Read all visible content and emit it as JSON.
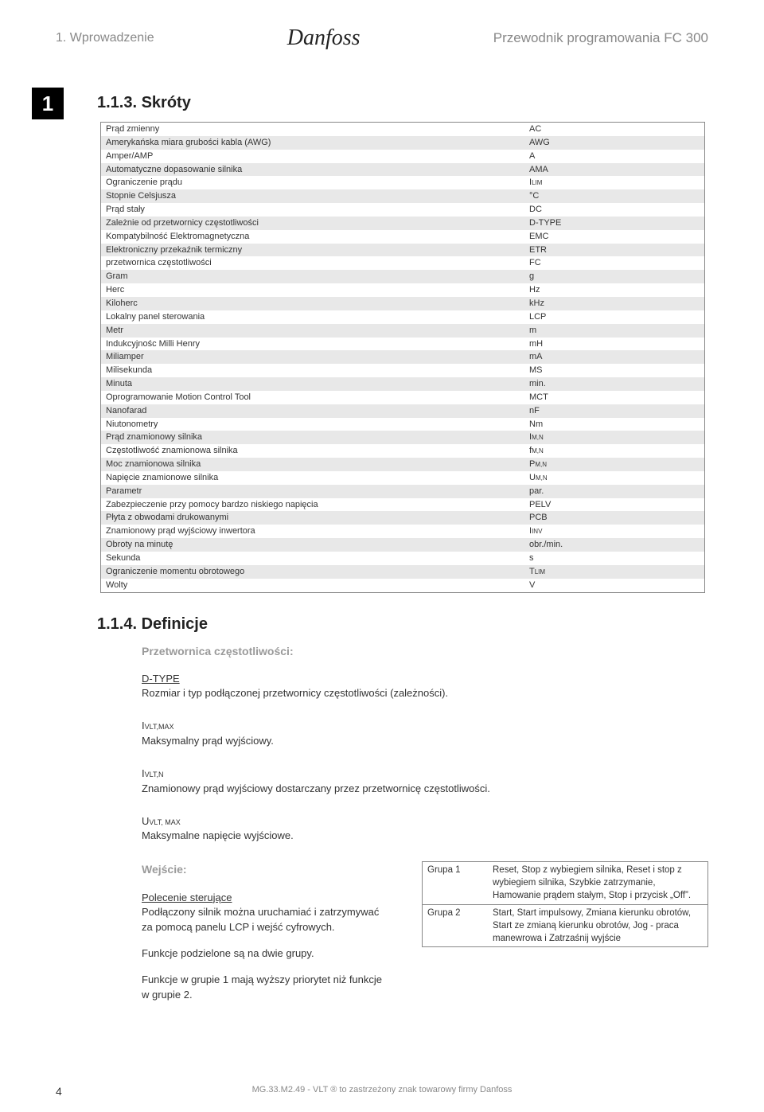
{
  "header": {
    "left": "1. Wprowadzenie",
    "logo": "Danfoss",
    "right": "Przewodnik programowania FC 300"
  },
  "chapter_num": "1",
  "section_abbrev": {
    "title": "1.1.3. Skróty",
    "rows": [
      {
        "label": "Prąd zmienny",
        "value": "AC"
      },
      {
        "label": "Amerykańska miara grubości kabla (AWG)",
        "value": "AWG"
      },
      {
        "label": "Amper/AMP",
        "value": "A"
      },
      {
        "label": "Automatyczne dopasowanie silnika",
        "value": "AMA"
      },
      {
        "label": "Ograniczenie prądu",
        "value": "ILIM",
        "sub": "LIM"
      },
      {
        "label": "Stopnie Celsjusza",
        "value": "°C"
      },
      {
        "label": "Prąd stały",
        "value": "DC"
      },
      {
        "label": "Zależnie od przetwornicy częstotliwości",
        "value": "D-TYPE"
      },
      {
        "label": "Kompatybilność Elektromagnetyczna",
        "value": "EMC"
      },
      {
        "label": "Elektroniczny przekaźnik termiczny",
        "value": "ETR"
      },
      {
        "label": "przetwornica częstotliwości",
        "value": "FC"
      },
      {
        "label": "Gram",
        "value": "g"
      },
      {
        "label": "Herc",
        "value": "Hz"
      },
      {
        "label": "Kiloherc",
        "value": "kHz"
      },
      {
        "label": "Lokalny panel sterowania",
        "value": "LCP"
      },
      {
        "label": "Metr",
        "value": "m"
      },
      {
        "label": "Indukcyjnośc Milli Henry",
        "value": "mH"
      },
      {
        "label": "Miliamper",
        "value": "mA"
      },
      {
        "label": "Milisekunda",
        "value": "MS"
      },
      {
        "label": "Minuta",
        "value": "min."
      },
      {
        "label": "Oprogramowanie Motion Control Tool",
        "value": "MCT"
      },
      {
        "label": "Nanofarad",
        "value": "nF"
      },
      {
        "label": "Niutonometry",
        "value": "Nm"
      },
      {
        "label": "Prąd znamionowy silnika",
        "value": "IM,N",
        "sub": "M,N"
      },
      {
        "label": "Częstotliwość znamionowa silnika",
        "value": "fM,N",
        "sub": "M,N",
        "pre": "f"
      },
      {
        "label": "Moc znamionowa silnika",
        "value": "PM,N",
        "sub": "M,N",
        "pre": "P"
      },
      {
        "label": "Napięcie znamionowe silnika",
        "value": "UM,N",
        "sub": "M,N",
        "pre": "U"
      },
      {
        "label": "Parametr",
        "value": "par."
      },
      {
        "label": "Zabezpieczenie przy pomocy bardzo niskiego napięcia",
        "value": "PELV"
      },
      {
        "label": "Płyta z obwodami drukowanymi",
        "value": "PCB"
      },
      {
        "label": "Znamionowy prąd wyjściowy inwertora",
        "value": "IINV",
        "sub": "INV"
      },
      {
        "label": "Obroty na minutę",
        "value": "obr./min."
      },
      {
        "label": "Sekunda",
        "value": "s"
      },
      {
        "label": "Ograniczenie momentu obrotowego",
        "value": "TLIM",
        "sub": "LIM",
        "pre": "T"
      },
      {
        "label": "Wolty",
        "value": "V"
      }
    ],
    "row_bg_shade": "#e8e8e8",
    "row_bg_plain": "#ffffff"
  },
  "section_defs": {
    "title": "1.1.4. Definicje",
    "subheading": "Przetwornica częstotliwości:",
    "defs": [
      {
        "term_html": "D-TYPE",
        "desc": "Rozmiar i typ podłączonej przetwornicy częstotliwości (zależności).",
        "underline": true
      },
      {
        "term_html": "I<span class='sub2'>VLT,MAX</span>",
        "desc": "Maksymalny prąd wyjściowy."
      },
      {
        "term_html": "I<span class='sub2'>VLT,N</span>",
        "desc": "Znamionowy prąd wyjściowy dostarczany przez przetwornicę częstotliwości."
      },
      {
        "term_html": "U<span class='sub2'>VLT, MAX</span>",
        "desc": "Maksymalne napięcie wyjściowe."
      }
    ],
    "wejscie_label": "Wejście:",
    "polecenie_label": "Polecenie sterujące",
    "left_paragraphs": [
      "Podłączony silnik można uruchamiać i zatrzymywać za pomocą panelu LCP i wejść cyfrowych.",
      "Funkcje podzielone są na dwie grupy.",
      "Funkcje w grupie 1 mają wyższy priorytet niż funkcje w grupie 2."
    ],
    "groups": [
      {
        "name": "Grupa 1",
        "text": "Reset, Stop z wybiegiem silnika, Reset i stop z wybiegiem silnika, Szybkie zatrzymanie, Hamowanie prądem stałym, Stop i przycisk „Off”."
      },
      {
        "name": "Grupa 2",
        "text": "Start, Start impulsowy, Zmiana kierunku obrotów, Start ze zmianą kierunku obrotów, Jog - praca manewrowa i Zatrzaśnij wyjście"
      }
    ]
  },
  "footer": {
    "page_num": "4",
    "text": "MG.33.M2.49 - VLT ® to zastrzeżony znak towarowy firmy Danfoss"
  },
  "colors": {
    "text": "#333333",
    "muted": "#888888",
    "shade": "#e8e8e8",
    "heading_gray": "#9a9a9a"
  }
}
